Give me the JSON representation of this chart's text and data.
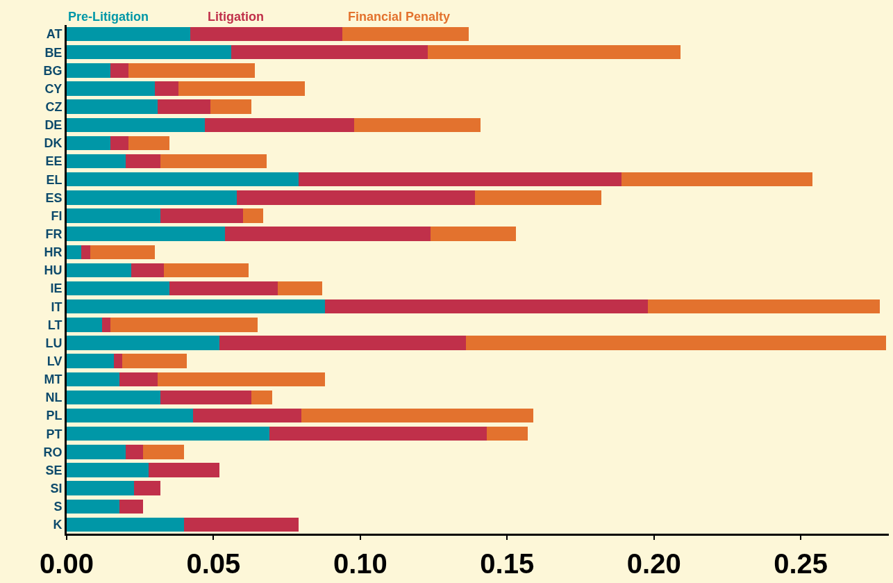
{
  "chart_data": {
    "type": "bar",
    "orientation": "horizontal",
    "stacked": true,
    "categories": [
      "AT",
      "BE",
      "BG",
      "CY",
      "CZ",
      "DE",
      "DK",
      "EE",
      "EL",
      "ES",
      "FI",
      "FR",
      "HR",
      "HU",
      "IE",
      "IT",
      "LT",
      "LU",
      "LV",
      "MT",
      "NL",
      "PL",
      "PT",
      "RO",
      "SE",
      "SI",
      "S",
      "K"
    ],
    "series": [
      {
        "name": "Pre-Litigation",
        "color": "#0097a7",
        "values": [
          0.042,
          0.056,
          0.015,
          0.03,
          0.031,
          0.047,
          0.015,
          0.02,
          0.079,
          0.058,
          0.032,
          0.054,
          0.005,
          0.022,
          0.035,
          0.088,
          0.012,
          0.052,
          0.016,
          0.018,
          0.032,
          0.043,
          0.069,
          0.02,
          0.028,
          0.023,
          0.018,
          0.04
        ]
      },
      {
        "name": "Litigation",
        "color": "#c0304a",
        "values": [
          0.052,
          0.067,
          0.006,
          0.008,
          0.018,
          0.051,
          0.006,
          0.012,
          0.11,
          0.081,
          0.028,
          0.07,
          0.003,
          0.011,
          0.037,
          0.11,
          0.003,
          0.084,
          0.003,
          0.013,
          0.031,
          0.037,
          0.074,
          0.006,
          0.024,
          0.009,
          0.008,
          0.039
        ]
      },
      {
        "name": "Financial Penalty",
        "color": "#e3722e",
        "values": [
          0.043,
          0.086,
          0.043,
          0.043,
          0.014,
          0.043,
          0.014,
          0.036,
          0.065,
          0.043,
          0.007,
          0.029,
          0.022,
          0.029,
          0.015,
          0.079,
          0.05,
          0.143,
          0.022,
          0.057,
          0.007,
          0.079,
          0.014,
          0.014,
          0,
          0,
          0,
          0
        ]
      }
    ],
    "xlim": [
      0,
      0.28
    ],
    "xticks": [
      {
        "value": 0,
        "label": "0.00"
      },
      {
        "value": 0.05,
        "label": "0.05"
      },
      {
        "value": 0.1,
        "label": "0.10"
      },
      {
        "value": 0.15,
        "label": "0.15"
      },
      {
        "value": 0.2,
        "label": "0.20"
      },
      {
        "value": 0.25,
        "label": "0.25"
      }
    ],
    "grid": false,
    "legend": "top left"
  }
}
